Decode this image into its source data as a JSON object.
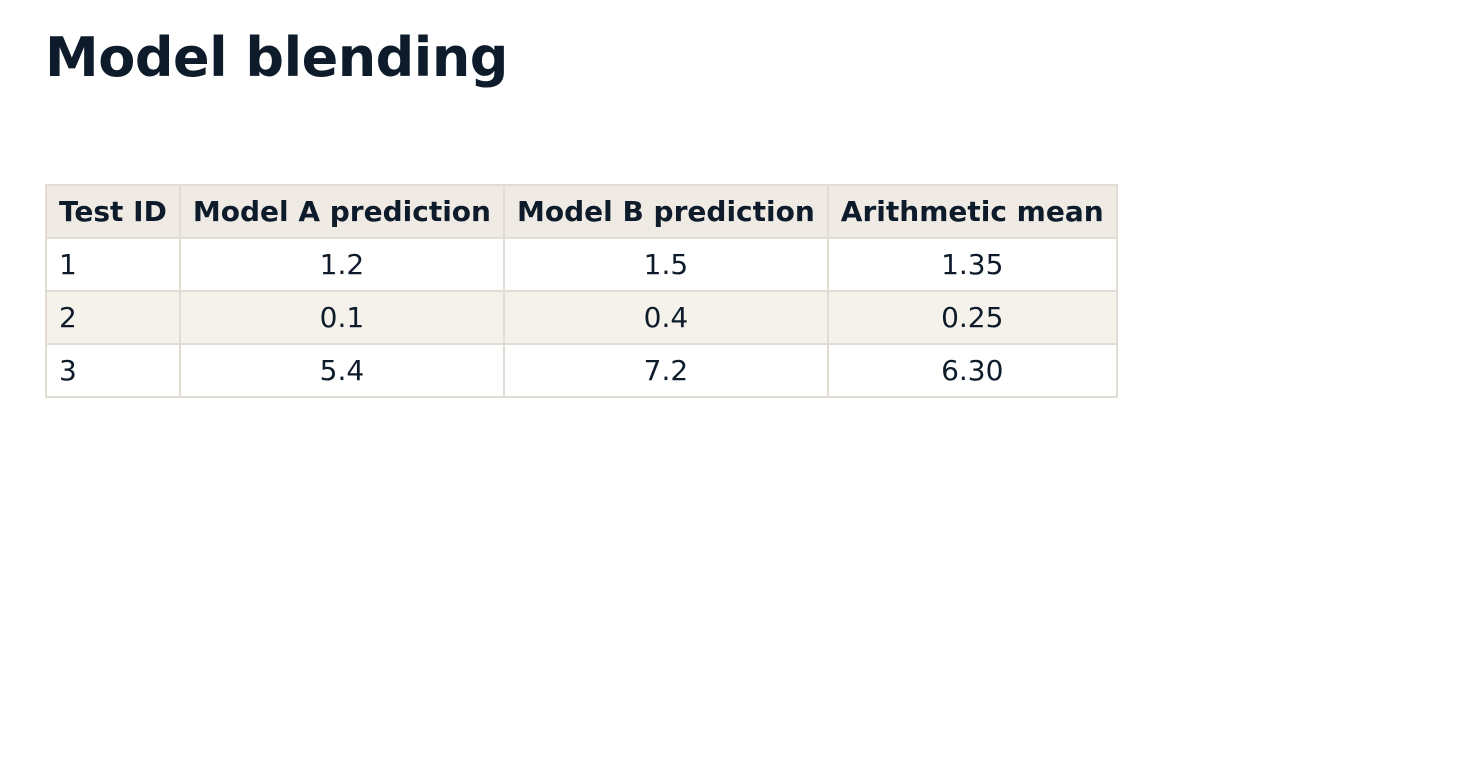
{
  "page": {
    "title": "Model blending"
  },
  "table": {
    "headers": [
      "Test ID",
      "Model A prediction",
      "Model B prediction",
      "Arithmetic mean"
    ],
    "rows": [
      [
        "1",
        "1.2",
        "1.5",
        "1.35"
      ],
      [
        "2",
        "0.1",
        "0.4",
        "0.25"
      ],
      [
        "3",
        "5.4",
        "7.2",
        "6.30"
      ]
    ]
  },
  "colors": {
    "text": "#0d1b2a",
    "header_bg": "#efebe4",
    "stripe_bg": "#f5f2ec",
    "border": "#e1ddd5"
  }
}
